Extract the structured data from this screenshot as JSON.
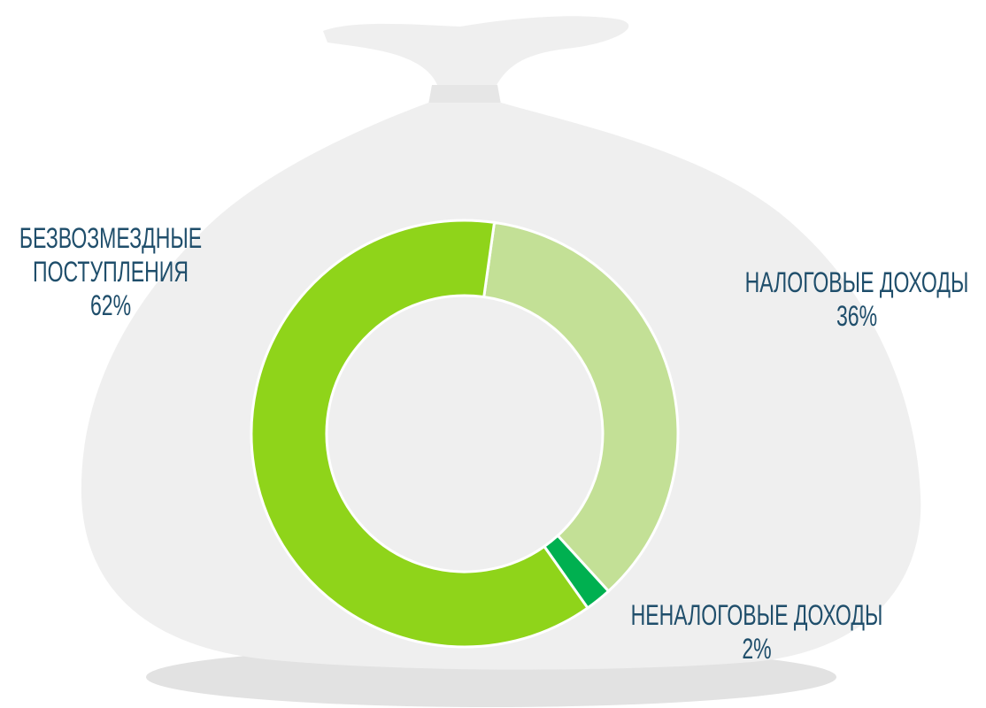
{
  "chart_data": {
    "type": "donut",
    "categories": [
      "НАЛОГОВЫЕ ДОХОДЫ",
      "НЕНАЛОГОВЫЕ ДОХОДЫ",
      "БЕЗВОЗМЕЗДНЫЕ ПОСТУПЛЕНИЯ"
    ],
    "values": [
      36,
      2,
      62
    ],
    "value_labels": [
      "36%",
      "2%",
      "62%"
    ],
    "colors": [
      "#c3e096",
      "#00b050",
      "#8fd41a"
    ]
  }
}
